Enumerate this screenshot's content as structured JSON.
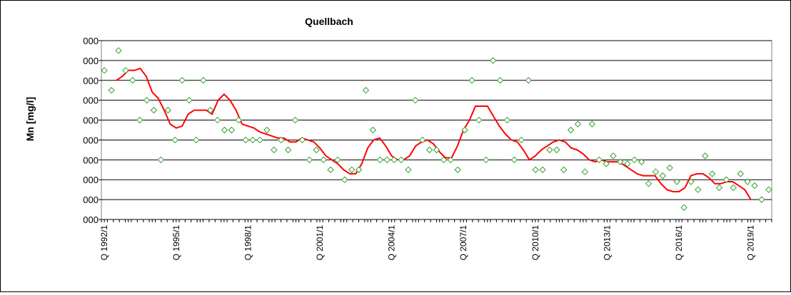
{
  "chart_data": {
    "type": "scatter",
    "title": "Quellbach",
    "ylabel": "Mn [mg/l]",
    "xlabel": "",
    "ylim": [
      0,
      9
    ],
    "ytick_labels": [
      "000",
      "000",
      "000",
      "000",
      "000",
      "000",
      "000",
      "000",
      "000",
      "000"
    ],
    "x_tick_labels": [
      "Q 1992/1",
      "Q 1995/1",
      "Q 1998/1",
      "Q 2001/1",
      "Q 2004/1",
      "Q 2007/1",
      "Q 2010/1",
      "Q 2013/1",
      "Q 2016/1",
      "Q 2019/1"
    ],
    "grid": "horizontal",
    "legend": "none",
    "series": [
      {
        "style": "points",
        "color": "#33a02c",
        "values": [
          7.5,
          6.5,
          8.5,
          7.5,
          7.0,
          5.0,
          6.0,
          5.5,
          3.0,
          5.5,
          4.0,
          7.0,
          6.0,
          4.0,
          7.0,
          5.5,
          5.0,
          4.5,
          4.5,
          5.0,
          4.0,
          4.0,
          4.0,
          4.5,
          3.5,
          4.0,
          3.5,
          5.0,
          4.0,
          3.0,
          3.5,
          3.0,
          2.5,
          3.0,
          2.0,
          2.5,
          2.5,
          6.5,
          4.5,
          3.0,
          3.0,
          3.0,
          3.0,
          2.5,
          6.0,
          4.0,
          3.5,
          3.5,
          3.0,
          3.0,
          2.5,
          4.5,
          7.0,
          5.0,
          3.0,
          8.0,
          7.0,
          5.0,
          3.0,
          4.0,
          7.0,
          2.5,
          2.5,
          3.5,
          3.5,
          2.5,
          4.5,
          4.8,
          2.4,
          4.8,
          3.0,
          2.8,
          3.2,
          2.9,
          2.8,
          3.0,
          2.9,
          1.8,
          2.4,
          2.2,
          2.6,
          1.9,
          0.6,
          1.9,
          1.5,
          3.2,
          2.3,
          1.6,
          2.0,
          1.6,
          2.3,
          1.9,
          1.7,
          1.0,
          1.5
        ]
      },
      {
        "style": "line",
        "color": "#ff0000",
        "values": [
          7.0,
          7.2,
          7.5,
          7.5,
          7.6,
          7.2,
          6.4,
          6.1,
          5.5,
          4.8,
          4.6,
          4.7,
          5.3,
          5.5,
          5.5,
          5.5,
          5.3,
          6.0,
          6.3,
          6.0,
          5.5,
          4.8,
          4.7,
          4.6,
          4.4,
          4.3,
          4.2,
          4.1,
          4.1,
          3.9,
          3.9,
          4.1,
          4.0,
          3.9,
          3.6,
          3.2,
          3.0,
          2.8,
          2.5,
          2.3,
          2.3,
          2.8,
          3.6,
          4.0,
          4.1,
          3.7,
          3.2,
          3.0,
          3.0,
          3.2,
          3.7,
          3.9,
          4.0,
          3.8,
          3.4,
          3.1,
          3.1,
          3.7,
          4.5,
          5.0,
          5.7,
          5.7,
          5.7,
          5.2,
          4.7,
          4.3,
          4.0,
          3.9,
          3.5,
          3.0,
          3.2,
          3.5,
          3.7,
          3.9,
          4.0,
          3.9,
          3.6,
          3.5,
          3.3,
          3.0,
          2.9,
          3.0,
          2.9,
          2.9,
          2.9,
          2.7,
          2.5,
          2.3,
          2.2,
          2.2,
          2.2,
          1.8,
          1.5,
          1.4,
          1.4,
          1.6,
          2.2,
          2.3,
          2.3,
          2.1,
          1.8,
          1.8,
          1.9,
          1.9,
          1.7,
          1.5,
          1.0
        ]
      }
    ]
  }
}
